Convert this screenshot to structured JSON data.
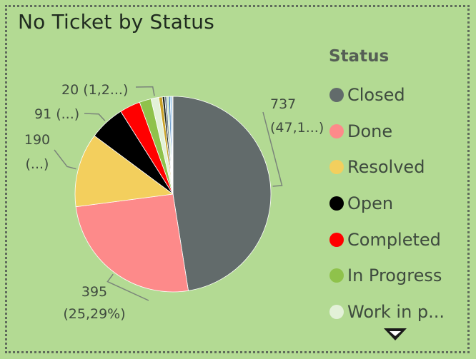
{
  "visual": {
    "title": "No Ticket by Status"
  },
  "legend": {
    "title": "Status",
    "items": [
      {
        "label": "Closed",
        "color": "#626b6b"
      },
      {
        "label": "Done",
        "color": "#fd8a8a"
      },
      {
        "label": "Resolved",
        "color": "#f3cf5d"
      },
      {
        "label": "Open",
        "color": "#000000"
      },
      {
        "label": "Completed",
        "color": "#ff0000"
      },
      {
        "label": "In Progress",
        "color": "#8fc24b"
      },
      {
        "label": "Work in p...",
        "color": "#e3f1d8"
      }
    ],
    "scroll_icon": "triangle-down-icon"
  },
  "chart_data": {
    "type": "pie",
    "title": "No Ticket by Status",
    "legend_title": "Status",
    "legend_position": "right",
    "slices": [
      {
        "label": "Closed",
        "value": 737,
        "color": "#626b6b"
      },
      {
        "label": "Done",
        "value": 395,
        "color": "#fd8a8a"
      },
      {
        "label": "Resolved",
        "value": 190,
        "color": "#f3cf5d"
      },
      {
        "label": "Open",
        "value": 91,
        "color": "#000000"
      },
      {
        "label": "Completed",
        "value": 53,
        "color": "#ff0000"
      },
      {
        "label": "In Progress",
        "value": 30,
        "color": "#8fc24b"
      },
      {
        "label": "Work in p...",
        "value": 20,
        "color": "#e3f1d8"
      },
      {
        "label": "",
        "value": 9,
        "color": "#c9a227"
      },
      {
        "label": "",
        "value": 6,
        "color": "#1f2a1f"
      },
      {
        "label": "",
        "value": 5,
        "color": "#6b7e8c"
      },
      {
        "label": "",
        "value": 5,
        "color": "#c9e7c4"
      },
      {
        "label": "",
        "value": 4,
        "color": "#2b6fb5"
      },
      {
        "label": "",
        "value": 4,
        "color": "#7fb8e6"
      },
      {
        "label": "",
        "value": 3,
        "color": "#d9d9d9"
      }
    ],
    "data_labels": [
      {
        "slice": "Closed",
        "lines": [
          "737",
          "(47,1...)"
        ]
      },
      {
        "slice": "Done",
        "lines": [
          "395",
          "(25,29%)"
        ]
      },
      {
        "slice": "Resolved",
        "lines": [
          "190",
          "(...)"
        ]
      },
      {
        "slice": "Open",
        "lines": [
          "91 (...)"
        ]
      },
      {
        "slice": "Work in p...",
        "lines": [
          "20 (1,2...)"
        ]
      }
    ]
  }
}
